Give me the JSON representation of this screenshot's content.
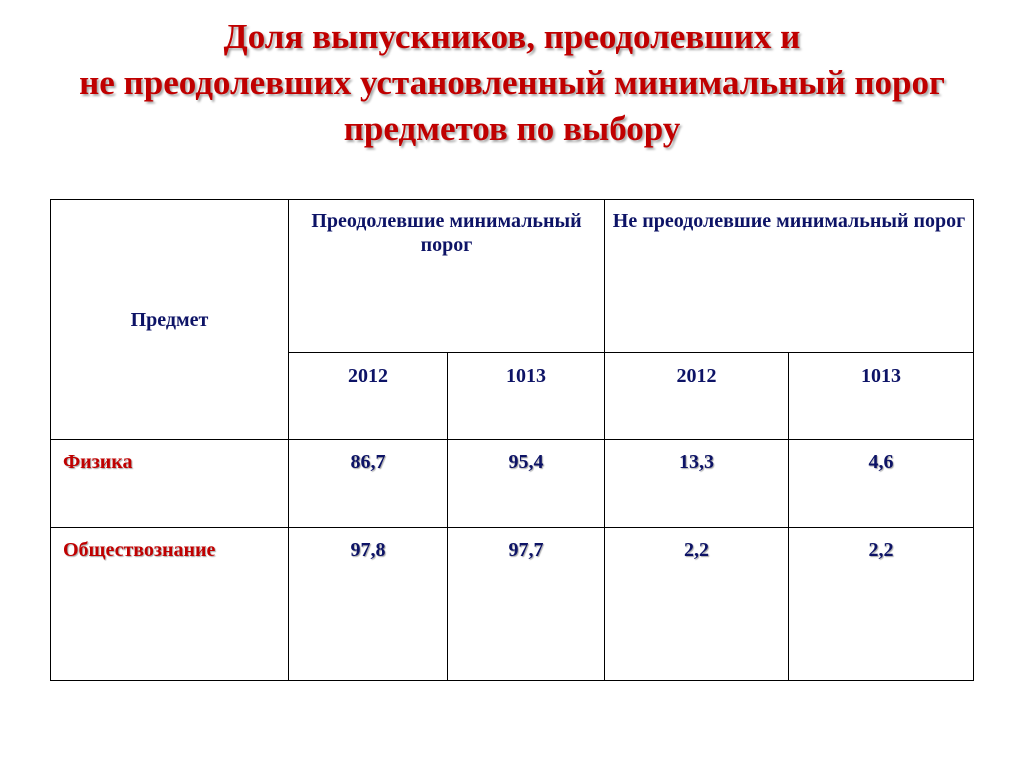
{
  "title": {
    "line1": "Доля выпускников, преодолевших  и",
    "line2": "не преодолевших установленный минимальный порог",
    "line3": "предметов по выбору"
  },
  "table": {
    "subject_header": "Предмет",
    "group_passed": "Преодолевшие минимальный порог",
    "group_failed": "Не преодолевшие минимальный порог",
    "years": [
      "2012",
      "1013",
      "2012",
      "1013"
    ],
    "rows": [
      {
        "subject": "Физика",
        "values": [
          "86,7",
          "95,4",
          "13,3",
          "4,6"
        ]
      },
      {
        "subject": "Обществознание",
        "values": [
          "97,8",
          "97,7",
          "2,2",
          "2,2"
        ]
      }
    ]
  },
  "colors": {
    "title": "#c00000",
    "header_text": "#0d1366",
    "subject_text": "#c00000"
  }
}
